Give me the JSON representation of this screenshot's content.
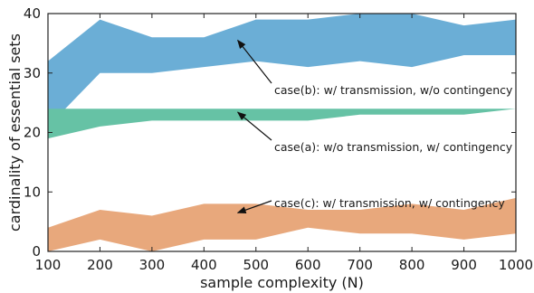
{
  "chart_data": {
    "type": "area",
    "xlabel": "sample complexity (N)",
    "ylabel": "cardinality of essential sets",
    "xlim": [
      100,
      1000
    ],
    "ylim": [
      0,
      40
    ],
    "xticks": [
      100,
      200,
      300,
      400,
      500,
      600,
      700,
      800,
      900,
      1000
    ],
    "yticks": [
      0,
      10,
      20,
      30,
      40
    ],
    "grid": false,
    "x": [
      100,
      200,
      300,
      400,
      500,
      600,
      700,
      800,
      900,
      1000
    ],
    "series": [
      {
        "color": "#6baed6",
        "lower": [
          21,
          30,
          30,
          31,
          32,
          31,
          32,
          31,
          33,
          33
        ],
        "upper": [
          32,
          39,
          36,
          36,
          39,
          39,
          40,
          40,
          38,
          39
        ]
      },
      {
        "color": "#66c2a5",
        "lower": [
          19,
          21,
          22,
          22,
          22,
          22,
          23,
          23,
          23,
          24
        ],
        "upper": [
          24,
          24,
          24,
          24,
          24,
          24,
          24,
          24,
          24,
          24
        ]
      },
      {
        "color": "#e8a87c",
        "lower": [
          0,
          2,
          0,
          2,
          2,
          4,
          3,
          3,
          2,
          3
        ],
        "upper": [
          4,
          7,
          6,
          8,
          8,
          7,
          7,
          8,
          7,
          9
        ]
      }
    ],
    "annotations": [
      {
        "text": "case(b): w/ transmission, w/o contingency",
        "arrow_to": [
          465,
          35.5
        ]
      },
      {
        "text": "case(a): w/o transmission, w/ contingency",
        "arrow_to": [
          465,
          23.4
        ]
      },
      {
        "text": "case(c): w/ transmission, w/ contingency",
        "arrow_to": [
          465,
          6.5
        ]
      }
    ]
  }
}
